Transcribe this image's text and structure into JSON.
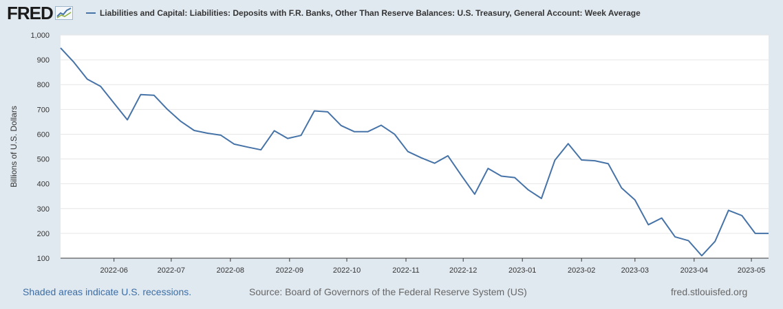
{
  "brand": {
    "logo_text": "FRED",
    "logo_icon": "chart-line-icon"
  },
  "colors": {
    "series": "#4572a7",
    "background": "#e1e9f0",
    "plot": "#ffffff",
    "grid": "#e6e6e6",
    "link": "#3b6da5"
  },
  "footer": {
    "recessions_note": "Shaded areas indicate U.S. recessions.",
    "source": "Source: Board of Governors of the Federal Reserve System (US)",
    "site": "fred.stlouisfed.org"
  },
  "chart_data": {
    "type": "line",
    "title": "",
    "ylabel": "Billions of U.S. Dollars",
    "xlabel": "",
    "ylim": [
      100,
      1000
    ],
    "yticks": [
      100,
      200,
      300,
      400,
      500,
      600,
      700,
      800,
      900,
      1000
    ],
    "ytick_labels": [
      "100",
      "200",
      "300",
      "400",
      "500",
      "600",
      "700",
      "800",
      "900",
      "1,000"
    ],
    "xlim": [
      "2022-05-04",
      "2023-05-10"
    ],
    "xticks": [
      "2022-06-01",
      "2022-07-01",
      "2022-08-01",
      "2022-09-01",
      "2022-10-01",
      "2022-11-01",
      "2022-12-01",
      "2023-01-01",
      "2023-02-01",
      "2023-03-01",
      "2023-04-01",
      "2023-05-01"
    ],
    "xtick_labels": [
      "2022-06",
      "2022-07",
      "2022-08",
      "2022-09",
      "2022-10",
      "2022-11",
      "2022-12",
      "2023-01",
      "2023-02",
      "2023-03",
      "2023-04",
      "2023-05"
    ],
    "grid": true,
    "legend_position": "top",
    "series": [
      {
        "name": "Liabilities and Capital: Liabilities: Deposits with F.R. Banks, Other Than Reserve Balances: U.S. Treasury, General Account: Week Average",
        "x": [
          "2022-05-04",
          "2022-05-11",
          "2022-05-18",
          "2022-05-25",
          "2022-06-01",
          "2022-06-08",
          "2022-06-15",
          "2022-06-22",
          "2022-06-29",
          "2022-07-06",
          "2022-07-13",
          "2022-07-20",
          "2022-07-27",
          "2022-08-03",
          "2022-08-10",
          "2022-08-17",
          "2022-08-24",
          "2022-08-31",
          "2022-09-07",
          "2022-09-14",
          "2022-09-21",
          "2022-09-28",
          "2022-10-05",
          "2022-10-12",
          "2022-10-19",
          "2022-10-26",
          "2022-11-02",
          "2022-11-09",
          "2022-11-16",
          "2022-11-23",
          "2022-11-30",
          "2022-12-07",
          "2022-12-14",
          "2022-12-21",
          "2022-12-28",
          "2023-01-04",
          "2023-01-11",
          "2023-01-18",
          "2023-01-25",
          "2023-02-01",
          "2023-02-08",
          "2023-02-15",
          "2023-02-22",
          "2023-03-01",
          "2023-03-08",
          "2023-03-15",
          "2023-03-22",
          "2023-03-29",
          "2023-04-05",
          "2023-04-12",
          "2023-04-19",
          "2023-04-26",
          "2023-05-03",
          "2023-05-10"
        ],
        "values": [
          948,
          890,
          822,
          793,
          725,
          658,
          760,
          757,
          700,
          652,
          615,
          604,
          596,
          560,
          548,
          537,
          614,
          583,
          595,
          694,
          690,
          635,
          610,
          610,
          636,
          600,
          530,
          505,
          483,
          513,
          434,
          358,
          462,
          431,
          425,
          376,
          341,
          495,
          562,
          496,
          493,
          481,
          383,
          335,
          235,
          262,
          186,
          171,
          110,
          168,
          293,
          272,
          200,
          200
        ]
      }
    ]
  }
}
